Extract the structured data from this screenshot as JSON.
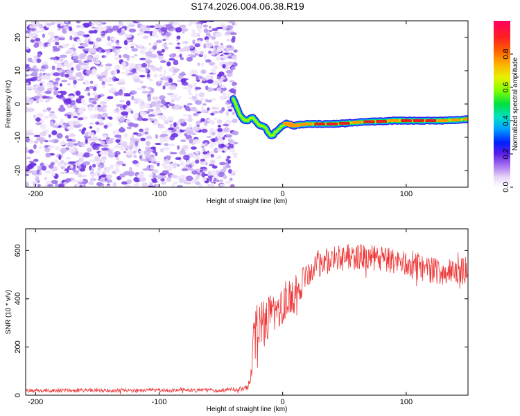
{
  "title": "S174.2026.004.06.38.R19",
  "chart_data": [
    {
      "type": "heatmap",
      "name": "spectrogram",
      "xlabel": "Height of straight line (km)",
      "ylabel": "Frequency (Hz)",
      "xlim": [
        -208,
        150
      ],
      "ylim": [
        -25,
        25
      ],
      "xticks": [
        -200,
        -100,
        0,
        100
      ],
      "yticks": [
        -20,
        -10,
        0,
        10,
        20
      ],
      "noise_region": {
        "x": [
          -208,
          -38
        ],
        "description": "random low-amplitude speckle"
      },
      "signal_track": {
        "x": [
          -40,
          -38,
          -36,
          -34,
          -32,
          -30,
          -28,
          -26,
          -24,
          -22,
          -20,
          -18,
          -16,
          -14,
          -12,
          -10,
          -8,
          -6,
          -4,
          -2,
          0,
          2,
          4,
          6,
          8,
          10,
          15,
          20,
          30,
          40,
          50,
          60,
          70,
          80,
          90,
          100,
          110,
          120,
          130,
          140,
          150
        ],
        "freq": [
          1.5,
          0,
          -2,
          -3.5,
          -4.5,
          -5,
          -5,
          -4.2,
          -4,
          -5,
          -6,
          -6.5,
          -6.5,
          -7,
          -8.5,
          -9.5,
          -9.5,
          -8.5,
          -7.8,
          -7.2,
          -6.5,
          -6,
          -5.8,
          -6.2,
          -6.5,
          -6.5,
          -6.2,
          -6,
          -6,
          -6,
          -5.8,
          -5.5,
          -5.3,
          -5.2,
          -5,
          -5,
          -5,
          -5,
          -5,
          -4.8,
          -4.5
        ],
        "amplitude": [
          0.3,
          0.45,
          0.35,
          0.4,
          0.5,
          0.45,
          0.5,
          0.55,
          0.5,
          0.45,
          0.5,
          0.4,
          0.45,
          0.5,
          0.55,
          0.6,
          0.6,
          0.55,
          0.5,
          0.55,
          0.6,
          0.6,
          0.7,
          0.75,
          0.7,
          0.8,
          0.75,
          0.8,
          0.85,
          0.9,
          0.85,
          0.8,
          0.9,
          0.85,
          0.8,
          0.85,
          0.9,
          0.85,
          0.8,
          0.75,
          0.7
        ]
      },
      "colorbar": {
        "label": "Normalized spectral amplitude",
        "range": [
          0,
          1
        ],
        "ticks": [
          "0.0",
          "0.2",
          "0.4",
          "0.6",
          "0.8"
        ]
      }
    },
    {
      "type": "line",
      "name": "snr",
      "xlabel": "Height of straight line (km)",
      "ylabel": "SNR (10 * v/v)",
      "xlim": [
        -208,
        150
      ],
      "ylim": [
        0,
        690
      ],
      "xticks": [
        -200,
        -100,
        0,
        100
      ],
      "yticks": [
        0,
        200,
        400,
        600
      ],
      "color": "#ee3333",
      "series": [
        {
          "name": "SNR",
          "x": [
            -208,
            -150,
            -100,
            -50,
            -28,
            -25,
            -24,
            -22,
            -20,
            -15,
            -10,
            -5,
            0,
            5,
            10,
            15,
            20,
            25,
            30,
            40,
            50,
            60,
            70,
            80,
            90,
            100,
            110,
            120,
            130,
            140,
            150
          ],
          "y": [
            20,
            20,
            20,
            20,
            30,
            120,
            250,
            260,
            280,
            300,
            320,
            340,
            380,
            400,
            420,
            460,
            500,
            530,
            550,
            560,
            570,
            575,
            570,
            565,
            555,
            545,
            530,
            520,
            510,
            510,
            520
          ],
          "noise_amplitude": [
            8,
            8,
            8,
            8,
            10,
            60,
            110,
            110,
            100,
            100,
            100,
            90,
            90,
            80,
            80,
            70,
            70,
            60,
            60,
            55,
            55,
            55,
            55,
            55,
            55,
            55,
            55,
            55,
            55,
            55,
            55
          ]
        }
      ]
    }
  ]
}
